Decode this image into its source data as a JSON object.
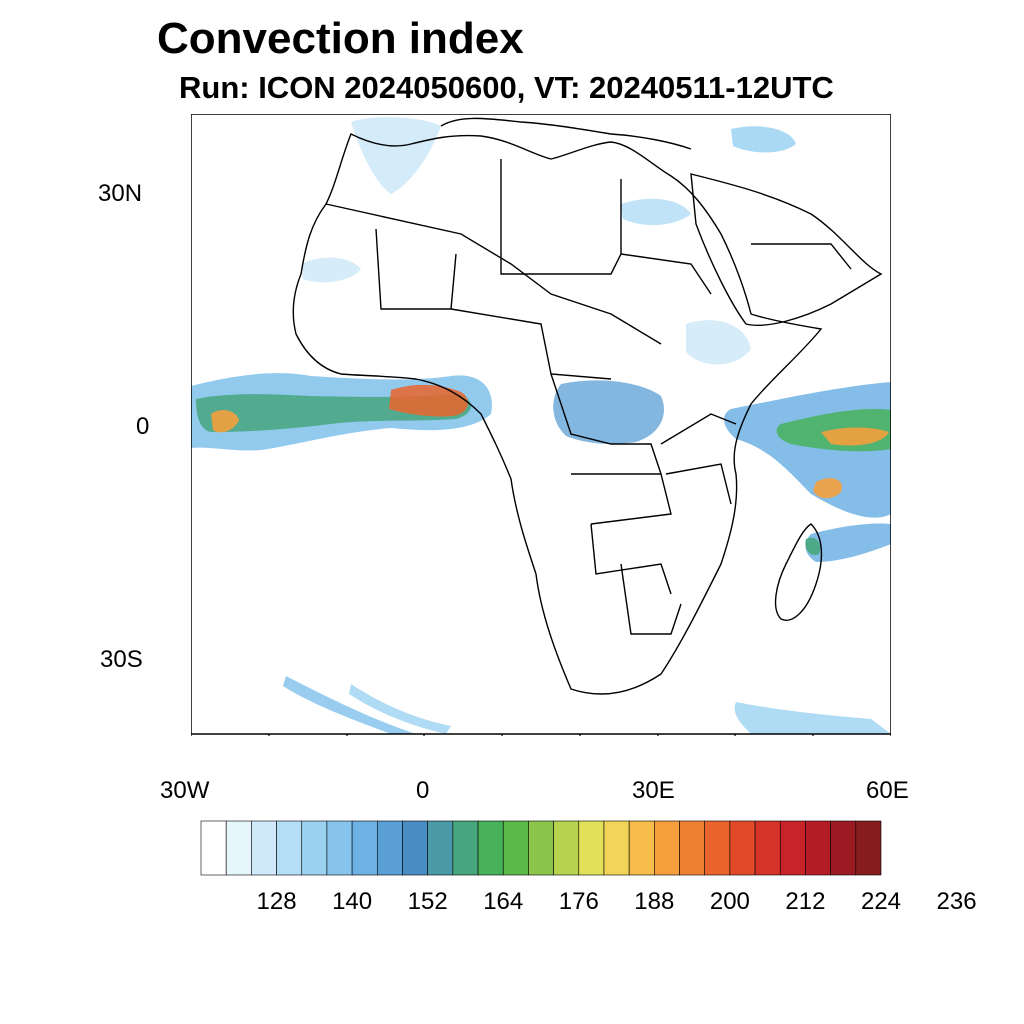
{
  "title": "Convection index",
  "subtitle": "Run: ICON 2024050600,  VT: 20240511-12UTC",
  "map": {
    "lon_range": [
      -30,
      60
    ],
    "lat_range": [
      -40,
      40
    ],
    "lon_ticks": [
      {
        "value": -30,
        "label": "30W"
      },
      {
        "value": 0,
        "label": "0"
      },
      {
        "value": 30,
        "label": "30E"
      },
      {
        "value": 60,
        "label": "60E"
      }
    ],
    "lat_ticks": [
      {
        "value": 30,
        "label": "30N"
      },
      {
        "value": 0,
        "label": "0"
      },
      {
        "value": -30,
        "label": "30S"
      }
    ]
  },
  "colorbar": {
    "colors": [
      "#ffffff",
      "#e6f4fc",
      "#cfe9f8",
      "#b5def6",
      "#9bd2f2",
      "#86c4ec",
      "#6eb2e3",
      "#5a9fd6",
      "#4a8cc4",
      "#4a9aa8",
      "#48a67e",
      "#47b25a",
      "#5cba4a",
      "#8cc54c",
      "#b7d24e",
      "#e2e059",
      "#f3d45a",
      "#f6bd4a",
      "#f49f3c",
      "#ef8133",
      "#e9642c",
      "#e04a28",
      "#d63328",
      "#c82329",
      "#b41d26",
      "#9c1a22",
      "#861c1c"
    ],
    "labels": [
      "128",
      "140",
      "152",
      "164",
      "176",
      "188",
      "200",
      "212",
      "224",
      "236"
    ]
  }
}
